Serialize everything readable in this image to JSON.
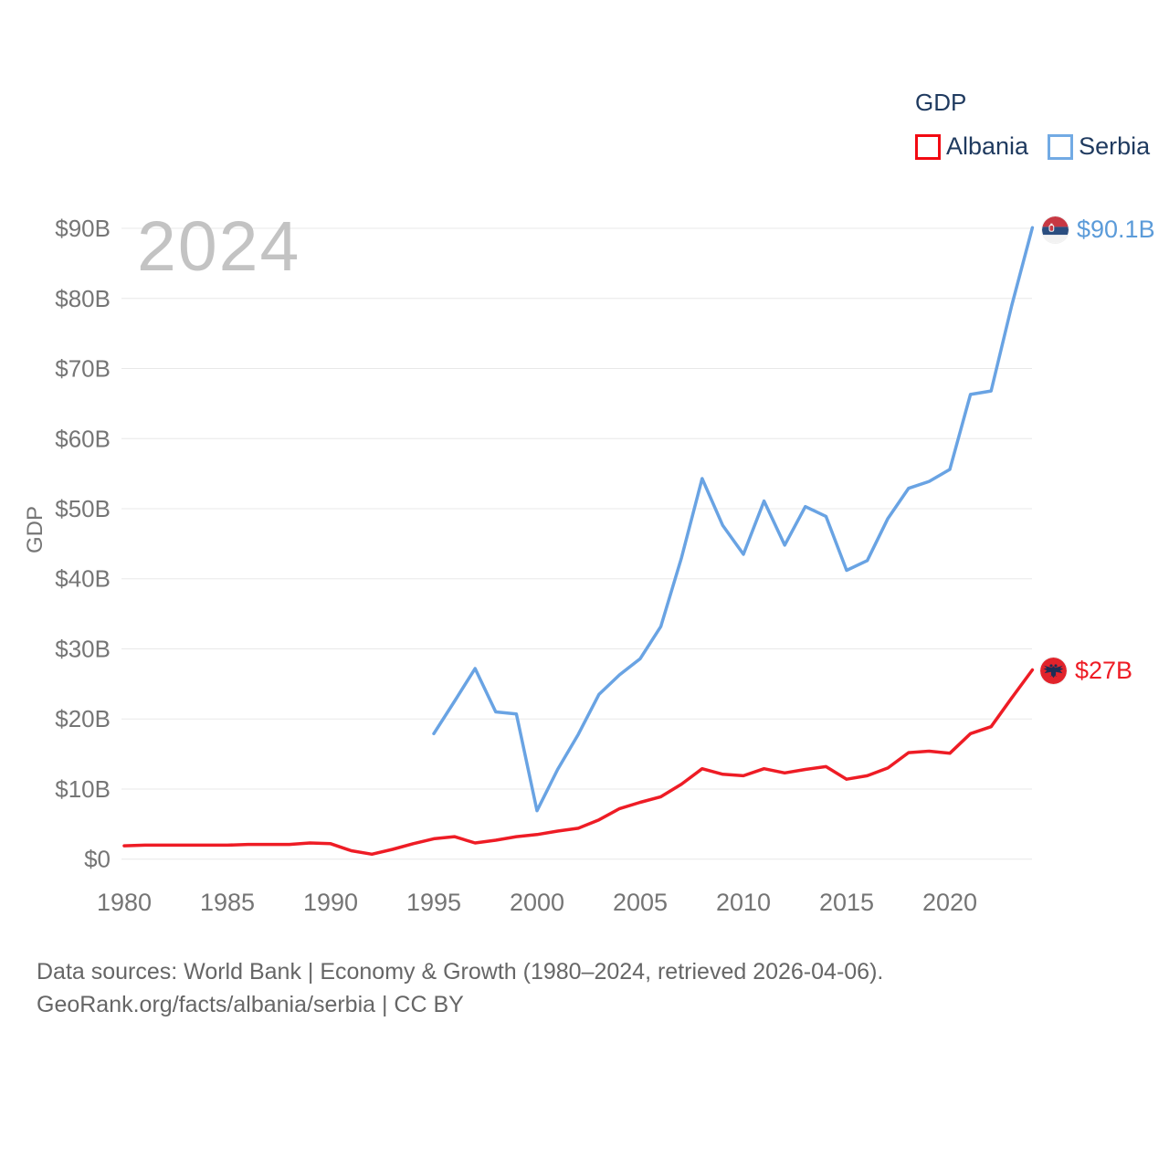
{
  "legend": {
    "title": "GDP",
    "items": [
      {
        "label": "Albania",
        "color": "#ee1c25"
      },
      {
        "label": "Serbia",
        "color": "#69a3e3"
      }
    ]
  },
  "watermark": "2024",
  "y_axis_title": "GDP",
  "end_labels": {
    "serbia": {
      "text": "$90.1B",
      "flag": "serbia-flag"
    },
    "albania": {
      "text": "$27B",
      "flag": "albania-flag"
    }
  },
  "footer": {
    "line1": "Data sources: World Bank | Economy & Growth (1980–2024, retrieved 2026-04-06).",
    "line2": "GeoRank.org/facts/albania/serbia | CC BY"
  },
  "chart_data": {
    "type": "line",
    "title": "GDP",
    "xlabel": "",
    "ylabel": "GDP",
    "watermark_year": "2024",
    "xlim": [
      1980,
      2024
    ],
    "ylim": [
      0,
      90
    ],
    "grid": "horizontal",
    "legend_position": "top-right",
    "units": "billions USD",
    "x_ticks": [
      1980,
      1985,
      1990,
      1995,
      2000,
      2005,
      2010,
      2015,
      2020
    ],
    "y_ticks": [
      {
        "v": 0,
        "label": "$0"
      },
      {
        "v": 10,
        "label": "$10B"
      },
      {
        "v": 20,
        "label": "$20B"
      },
      {
        "v": 30,
        "label": "$30B"
      },
      {
        "v": 40,
        "label": "$40B"
      },
      {
        "v": 50,
        "label": "$50B"
      },
      {
        "v": 60,
        "label": "$60B"
      },
      {
        "v": 70,
        "label": "$70B"
      },
      {
        "v": 80,
        "label": "$80B"
      },
      {
        "v": 90,
        "label": "$90B"
      }
    ],
    "series": [
      {
        "name": "Albania",
        "color": "#ee1c25",
        "end_label": "$27B",
        "points": [
          [
            1980,
            1.9
          ],
          [
            1981,
            2.0
          ],
          [
            1982,
            2.0
          ],
          [
            1983,
            2.0
          ],
          [
            1984,
            2.0
          ],
          [
            1985,
            2.0
          ],
          [
            1986,
            2.1
          ],
          [
            1987,
            2.1
          ],
          [
            1988,
            2.1
          ],
          [
            1989,
            2.3
          ],
          [
            1990,
            2.2
          ],
          [
            1991,
            1.2
          ],
          [
            1992,
            0.7
          ],
          [
            1993,
            1.4
          ],
          [
            1994,
            2.2
          ],
          [
            1995,
            2.9
          ],
          [
            1996,
            3.2
          ],
          [
            1997,
            2.3
          ],
          [
            1998,
            2.7
          ],
          [
            1999,
            3.2
          ],
          [
            2000,
            3.5
          ],
          [
            2001,
            4.0
          ],
          [
            2002,
            4.4
          ],
          [
            2003,
            5.6
          ],
          [
            2004,
            7.2
          ],
          [
            2005,
            8.1
          ],
          [
            2006,
            8.9
          ],
          [
            2007,
            10.7
          ],
          [
            2008,
            12.9
          ],
          [
            2009,
            12.1
          ],
          [
            2010,
            11.9
          ],
          [
            2011,
            12.9
          ],
          [
            2012,
            12.3
          ],
          [
            2013,
            12.8
          ],
          [
            2014,
            13.2
          ],
          [
            2015,
            11.4
          ],
          [
            2016,
            11.9
          ],
          [
            2017,
            13.0
          ],
          [
            2018,
            15.2
          ],
          [
            2019,
            15.4
          ],
          [
            2020,
            15.1
          ],
          [
            2021,
            17.9
          ],
          [
            2022,
            18.9
          ],
          [
            2023,
            23.0
          ],
          [
            2024,
            27.0
          ]
        ]
      },
      {
        "name": "Serbia",
        "color": "#69a3e3",
        "end_label": "$90.1B",
        "points": [
          [
            1995,
            17.9
          ],
          [
            1996,
            22.5
          ],
          [
            1997,
            27.2
          ],
          [
            1998,
            21.0
          ],
          [
            1999,
            20.7
          ],
          [
            2000,
            6.9
          ],
          [
            2001,
            12.8
          ],
          [
            2002,
            17.8
          ],
          [
            2003,
            23.5
          ],
          [
            2004,
            26.3
          ],
          [
            2005,
            28.6
          ],
          [
            2006,
            33.2
          ],
          [
            2007,
            43.0
          ],
          [
            2008,
            54.3
          ],
          [
            2009,
            47.6
          ],
          [
            2010,
            43.5
          ],
          [
            2011,
            51.1
          ],
          [
            2012,
            44.8
          ],
          [
            2013,
            50.3
          ],
          [
            2014,
            48.9
          ],
          [
            2015,
            41.2
          ],
          [
            2016,
            42.6
          ],
          [
            2017,
            48.6
          ],
          [
            2018,
            52.9
          ],
          [
            2019,
            53.9
          ],
          [
            2020,
            55.6
          ],
          [
            2021,
            66.3
          ],
          [
            2022,
            66.8
          ],
          [
            2023,
            79.0
          ],
          [
            2024,
            90.1
          ]
        ]
      }
    ]
  }
}
